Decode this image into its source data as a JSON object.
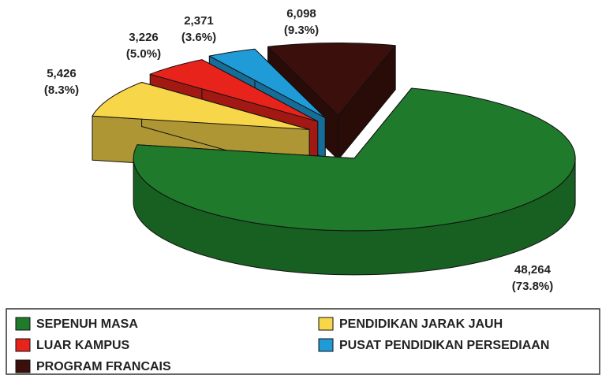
{
  "chart_data": {
    "type": "pie",
    "three_d": true,
    "exploded": true,
    "categories": [
      "SEPENUH MASA",
      "PENDIDIKAN JARAK JAUH",
      "LUAR KAMPUS",
      "PUSAT PENDIDIKAN PERSEDIAAN",
      "PROGRAM FRANCAIS"
    ],
    "values": [
      48264,
      5426,
      3226,
      2371,
      6098
    ],
    "value_labels": [
      "48,264",
      "5,426",
      "3,226",
      "2,371",
      "6,098"
    ],
    "percents": [
      73.8,
      8.3,
      5.0,
      3.6,
      9.3
    ],
    "percent_labels": [
      "(73.8%)",
      "(8.3%)",
      "(5.0%)",
      "(3.6%)",
      "(9.3%)"
    ],
    "colors": [
      "#1f7a2c",
      "#f8d64a",
      "#e8231b",
      "#1f9bd7",
      "#3b0f0c"
    ],
    "legend": "bottom"
  }
}
